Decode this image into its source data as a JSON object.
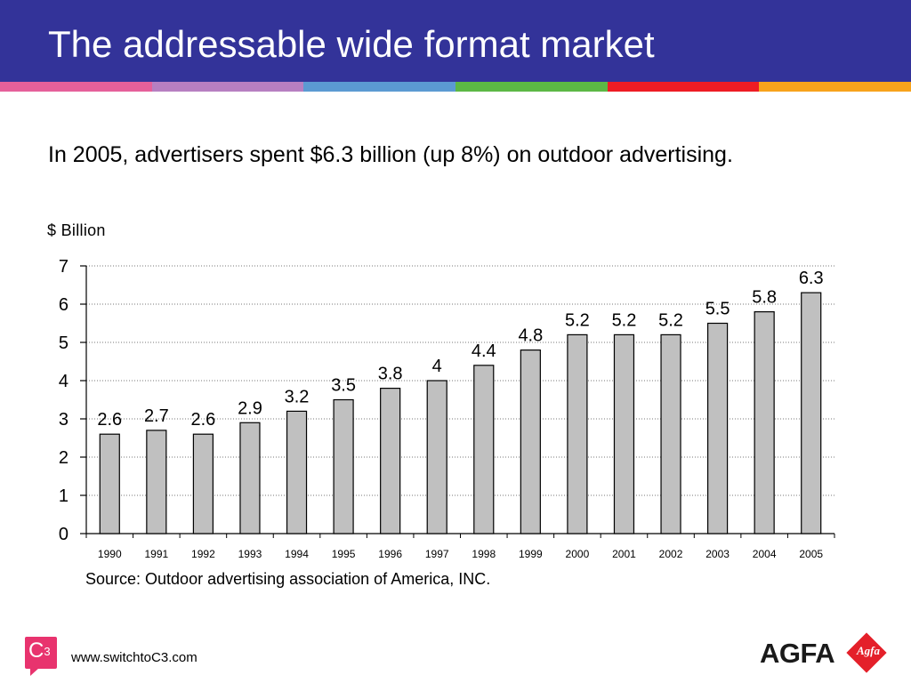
{
  "slide": {
    "title": "The addressable wide format market",
    "subtitle": "In 2005, advertisers spent $6.3 billion (up 8%) on outdoor advertising.",
    "unit_label": "$ Billion",
    "source": "Source: Outdoor advertising association of America, INC.",
    "website": "www.switchtoC3.com",
    "stripe_colors": [
      "#e5609a",
      "#b77fc1",
      "#5b9ad2",
      "#5cb845",
      "#ee1c24",
      "#f7a31c"
    ],
    "logos": {
      "c3_text": "C",
      "c3_sup": "3",
      "agfa_word": "AGFA",
      "agfa_mark": "Agfa"
    }
  },
  "chart_data": {
    "type": "bar",
    "categories": [
      "1990",
      "1991",
      "1992",
      "1993",
      "1994",
      "1995",
      "1996",
      "1997",
      "1998",
      "1999",
      "2000",
      "2001",
      "2002",
      "2003",
      "2004",
      "2005"
    ],
    "values": [
      2.6,
      2.7,
      2.6,
      2.9,
      3.2,
      3.5,
      3.8,
      4,
      4.4,
      4.8,
      5.2,
      5.2,
      5.2,
      5.5,
      5.8,
      6.3
    ],
    "data_labels": [
      "2.6",
      "2.7",
      "2.6",
      "2.9",
      "3.2",
      "3.5",
      "3.8",
      "4",
      "4.4",
      "4.8",
      "5.2",
      "5.2",
      "5.2",
      "5.5",
      "5.8",
      "6.3"
    ],
    "ylabel": "$ Billion",
    "ylim": [
      0,
      7
    ],
    "yticks": [
      0,
      1,
      2,
      3,
      4,
      5,
      6,
      7
    ],
    "grid": true,
    "bar_color": "#c0c0c0"
  }
}
